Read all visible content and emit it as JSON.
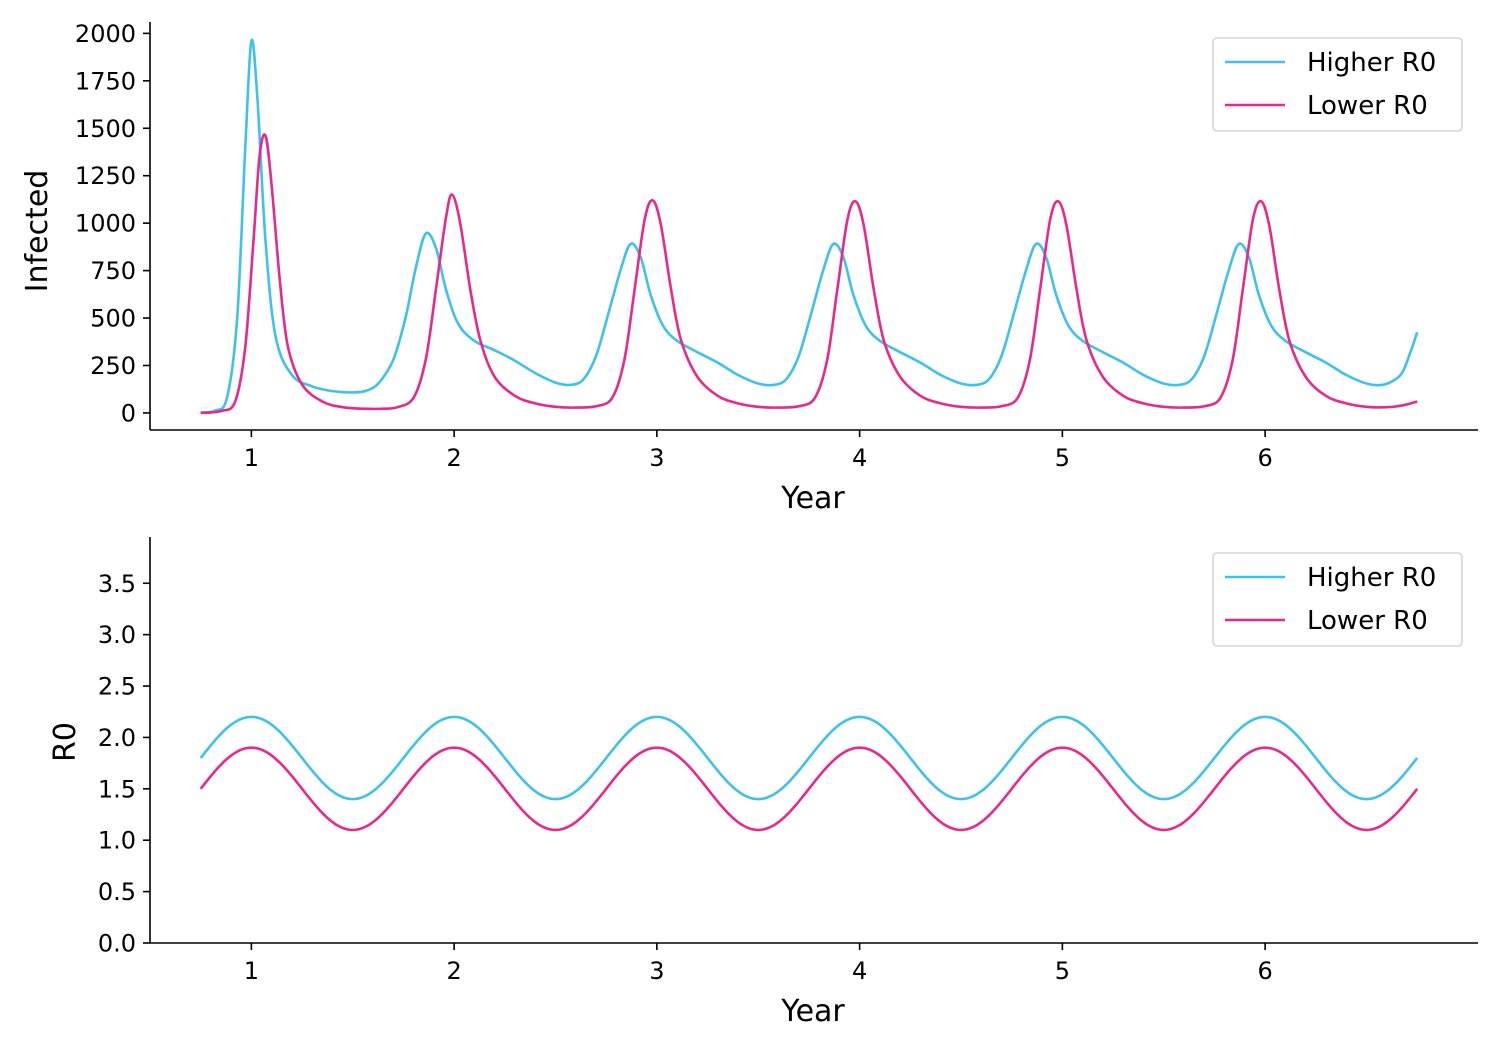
{
  "chart_data": [
    {
      "type": "line",
      "title": "",
      "xlabel": "Year",
      "ylabel": "Infected",
      "xlim": [
        0.5,
        7.05
      ],
      "ylim": [
        -90,
        2060
      ],
      "xticks": [
        1,
        2,
        3,
        4,
        5,
        6
      ],
      "xtick_labels": [
        "1",
        "2",
        "3",
        "4",
        "5",
        "6"
      ],
      "yticks": [
        0,
        250,
        500,
        750,
        1000,
        1250,
        1500,
        1750,
        2000
      ],
      "ytick_labels": [
        "0",
        "250",
        "500",
        "750",
        "1000",
        "1250",
        "1500",
        "1750",
        "2000"
      ],
      "grid": false,
      "legend": "top-right",
      "series": [
        {
          "name": "Higher R0",
          "color": "#3ec1ec",
          "points": [
            [
              0.75,
              2
            ],
            [
              0.82,
              12
            ],
            [
              0.88,
              80
            ],
            [
              0.93,
              500
            ],
            [
              0.97,
              1400
            ],
            [
              1.0,
              1960
            ],
            [
              1.03,
              1650
            ],
            [
              1.07,
              900
            ],
            [
              1.12,
              400
            ],
            [
              1.2,
              200
            ],
            [
              1.3,
              140
            ],
            [
              1.4,
              115
            ],
            [
              1.5,
              108
            ],
            [
              1.57,
              118
            ],
            [
              1.63,
              160
            ],
            [
              1.7,
              280
            ],
            [
              1.76,
              500
            ],
            [
              1.81,
              760
            ],
            [
              1.86,
              945
            ],
            [
              1.91,
              870
            ],
            [
              1.96,
              650
            ],
            [
              2.02,
              470
            ],
            [
              2.1,
              380
            ],
            [
              2.2,
              330
            ],
            [
              2.3,
              275
            ],
            [
              2.4,
              210
            ],
            [
              2.5,
              160
            ],
            [
              2.58,
              148
            ],
            [
              2.64,
              180
            ],
            [
              2.7,
              300
            ],
            [
              2.76,
              520
            ],
            [
              2.82,
              750
            ],
            [
              2.87,
              890
            ],
            [
              2.92,
              820
            ],
            [
              2.97,
              620
            ],
            [
              3.03,
              460
            ],
            [
              3.1,
              380
            ],
            [
              3.2,
              320
            ],
            [
              3.3,
              265
            ],
            [
              3.4,
              200
            ],
            [
              3.5,
              155
            ],
            [
              3.58,
              148
            ],
            [
              3.64,
              180
            ],
            [
              3.7,
              300
            ],
            [
              3.76,
              520
            ],
            [
              3.82,
              750
            ],
            [
              3.87,
              890
            ],
            [
              3.92,
              820
            ],
            [
              3.97,
              620
            ],
            [
              4.03,
              460
            ],
            [
              4.1,
              380
            ],
            [
              4.2,
              320
            ],
            [
              4.3,
              265
            ],
            [
              4.4,
              200
            ],
            [
              4.5,
              155
            ],
            [
              4.58,
              148
            ],
            [
              4.64,
              180
            ],
            [
              4.7,
              300
            ],
            [
              4.76,
              520
            ],
            [
              4.82,
              750
            ],
            [
              4.87,
              890
            ],
            [
              4.92,
              820
            ],
            [
              4.97,
              620
            ],
            [
              5.03,
              460
            ],
            [
              5.1,
              380
            ],
            [
              5.2,
              320
            ],
            [
              5.3,
              265
            ],
            [
              5.4,
              200
            ],
            [
              5.5,
              155
            ],
            [
              5.58,
              148
            ],
            [
              5.64,
              180
            ],
            [
              5.7,
              300
            ],
            [
              5.76,
              520
            ],
            [
              5.82,
              750
            ],
            [
              5.87,
              890
            ],
            [
              5.92,
              820
            ],
            [
              5.97,
              620
            ],
            [
              6.03,
              460
            ],
            [
              6.1,
              380
            ],
            [
              6.2,
              320
            ],
            [
              6.3,
              265
            ],
            [
              6.4,
              200
            ],
            [
              6.5,
              155
            ],
            [
              6.58,
              148
            ],
            [
              6.64,
              175
            ],
            [
              6.68,
              220
            ],
            [
              6.72,
              330
            ],
            [
              6.75,
              425
            ]
          ]
        },
        {
          "name": "Lower R0",
          "color": "#e8288a",
          "points": [
            [
              0.75,
              0
            ],
            [
              0.85,
              10
            ],
            [
              0.92,
              60
            ],
            [
              0.97,
              350
            ],
            [
              1.01,
              900
            ],
            [
              1.04,
              1350
            ],
            [
              1.07,
              1460
            ],
            [
              1.1,
              1200
            ],
            [
              1.14,
              700
            ],
            [
              1.18,
              350
            ],
            [
              1.25,
              150
            ],
            [
              1.35,
              60
            ],
            [
              1.45,
              30
            ],
            [
              1.55,
              22
            ],
            [
              1.65,
              22
            ],
            [
              1.72,
              30
            ],
            [
              1.8,
              80
            ],
            [
              1.86,
              280
            ],
            [
              1.91,
              650
            ],
            [
              1.96,
              1030
            ],
            [
              1.99,
              1150
            ],
            [
              2.03,
              1000
            ],
            [
              2.08,
              650
            ],
            [
              2.13,
              380
            ],
            [
              2.2,
              190
            ],
            [
              2.3,
              90
            ],
            [
              2.4,
              50
            ],
            [
              2.5,
              32
            ],
            [
              2.6,
              28
            ],
            [
              2.7,
              35
            ],
            [
              2.78,
              80
            ],
            [
              2.84,
              280
            ],
            [
              2.89,
              650
            ],
            [
              2.94,
              1020
            ],
            [
              2.98,
              1120
            ],
            [
              3.02,
              990
            ],
            [
              3.07,
              650
            ],
            [
              3.12,
              380
            ],
            [
              3.2,
              190
            ],
            [
              3.3,
              90
            ],
            [
              3.4,
              50
            ],
            [
              3.5,
              32
            ],
            [
              3.6,
              28
            ],
            [
              3.7,
              35
            ],
            [
              3.78,
              80
            ],
            [
              3.84,
              280
            ],
            [
              3.89,
              650
            ],
            [
              3.94,
              1020
            ],
            [
              3.98,
              1115
            ],
            [
              4.02,
              990
            ],
            [
              4.07,
              650
            ],
            [
              4.12,
              380
            ],
            [
              4.2,
              190
            ],
            [
              4.3,
              90
            ],
            [
              4.4,
              50
            ],
            [
              4.5,
              32
            ],
            [
              4.6,
              28
            ],
            [
              4.7,
              35
            ],
            [
              4.78,
              80
            ],
            [
              4.84,
              280
            ],
            [
              4.89,
              650
            ],
            [
              4.94,
              1020
            ],
            [
              4.98,
              1115
            ],
            [
              5.02,
              990
            ],
            [
              5.07,
              650
            ],
            [
              5.12,
              380
            ],
            [
              5.2,
              190
            ],
            [
              5.3,
              90
            ],
            [
              5.4,
              50
            ],
            [
              5.5,
              32
            ],
            [
              5.6,
              28
            ],
            [
              5.7,
              35
            ],
            [
              5.78,
              80
            ],
            [
              5.84,
              280
            ],
            [
              5.89,
              650
            ],
            [
              5.94,
              1020
            ],
            [
              5.98,
              1115
            ],
            [
              6.02,
              990
            ],
            [
              6.07,
              650
            ],
            [
              6.12,
              380
            ],
            [
              6.2,
              190
            ],
            [
              6.3,
              90
            ],
            [
              6.4,
              50
            ],
            [
              6.5,
              32
            ],
            [
              6.6,
              30
            ],
            [
              6.68,
              40
            ],
            [
              6.75,
              60
            ]
          ]
        }
      ]
    },
    {
      "type": "line",
      "title": "",
      "xlabel": "Year",
      "ylabel": "R0",
      "xlim": [
        0.5,
        7.05
      ],
      "ylim": [
        0,
        3.95
      ],
      "xticks": [
        1,
        2,
        3,
        4,
        5,
        6
      ],
      "xtick_labels": [
        "1",
        "2",
        "3",
        "4",
        "5",
        "6"
      ],
      "yticks": [
        0,
        0.5,
        1,
        1.5,
        2,
        2.5,
        3,
        3.5
      ],
      "ytick_labels": [
        "0.0",
        "0.5",
        "1.0",
        "1.5",
        "2.0",
        "2.5",
        "3.0",
        "3.5"
      ],
      "grid": false,
      "legend": "top-right",
      "series": [
        {
          "name": "Higher R0",
          "color": "#3ec1ec",
          "x_range": [
            0.75,
            6.75
          ],
          "formula": "1.8 + 0.4 * cos(2*pi*(x - 1))",
          "mean": 1.8,
          "amplitude": 0.4,
          "period": 1,
          "peak_x": 1
        },
        {
          "name": "Lower R0",
          "color": "#e8288a",
          "x_range": [
            0.75,
            6.75
          ],
          "formula": "1.5 + 0.4 * cos(2*pi*(x - 1))",
          "mean": 1.5,
          "amplitude": 0.4,
          "period": 1,
          "peak_x": 1
        }
      ]
    }
  ]
}
